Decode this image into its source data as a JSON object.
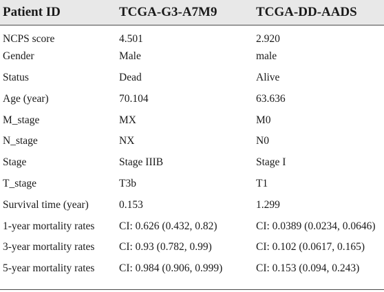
{
  "table": {
    "headers": [
      "Patient ID",
      "TCGA-G3-A7M9",
      "TCGA-DD-AADS"
    ],
    "rows": [
      [
        "NCPS score",
        "4.501",
        "2.920"
      ],
      [
        "Gender",
        "Male",
        "male"
      ],
      [
        "Status",
        "Dead",
        "Alive"
      ],
      [
        "Age (year)",
        "70.104",
        "63.636"
      ],
      [
        "M_stage",
        "MX",
        "M0"
      ],
      [
        "N_stage",
        "NX",
        "N0"
      ],
      [
        "Stage",
        "Stage IIIB",
        "Stage I"
      ],
      [
        "T_stage",
        "T3b",
        "T1"
      ],
      [
        "Survival time (year)",
        "0.153",
        "1.299"
      ],
      [
        "1-year mortality rates",
        "CI: 0.626 (0.432, 0.82)",
        "CI: 0.0389 (0.0234, 0.0646)"
      ],
      [
        "3-year mortality rates",
        "CI: 0.93 (0.782, 0.99)",
        "CI: 0.102 (0.0617, 0.165)"
      ],
      [
        "5-year mortality rates",
        "CI: 0.984 (0.906, 0.999)",
        "CI: 0.153 (0.094, 0.243)"
      ]
    ]
  }
}
